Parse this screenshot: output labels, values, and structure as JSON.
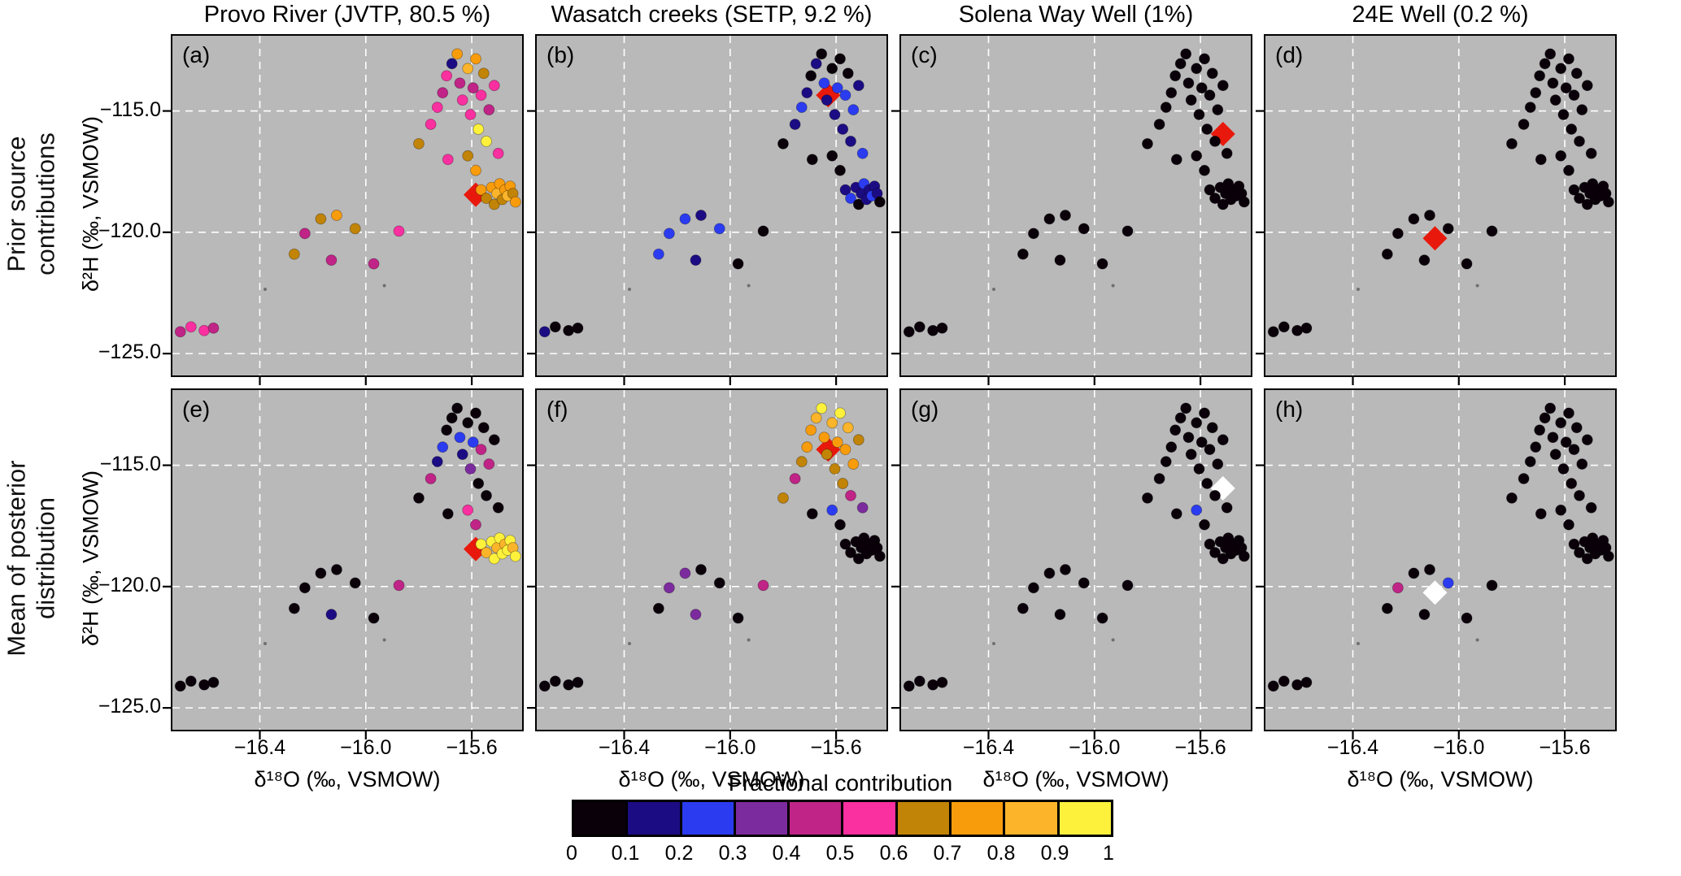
{
  "figure": {
    "panel_bg": "#b9b9b9",
    "grid_color": "#ffffff",
    "diamond_red": "#e8190c",
    "diamond_white": "#ffffff"
  },
  "chart_data": {
    "type": "scatter",
    "xlabel": "δ¹⁸O (‰, VSMOW)",
    "ylabel": "δ²H (‰, VSMOW)",
    "xlim": [
      -16.73,
      -15.41
    ],
    "ylim": [
      -125.9,
      -111.9
    ],
    "xticks": [
      -16.4,
      -16.0,
      -15.6
    ],
    "xtick_labels": [
      "−16.4",
      "−16.0",
      "−15.6"
    ],
    "yticks": [
      -115,
      -120,
      -125
    ],
    "ytick_labels": [
      "−115.0",
      "−120.0",
      "−125.0"
    ],
    "grid": "white-dashed",
    "legend_position": "bottom",
    "columns": [
      {
        "title": "Provo River (JVTP, 80.5 %)"
      },
      {
        "title": "Wasatch creeks (SETP, 9.2 %)"
      },
      {
        "title": "Solena Way Well (1%)"
      },
      {
        "title": "24E Well (0.2 %)"
      }
    ],
    "rows": [
      {
        "label": "Prior source\ncontributions"
      },
      {
        "label": "Mean of posterior\ndistribution"
      }
    ],
    "points_x": [
      -16.7,
      -16.66,
      -16.61,
      -16.575,
      -16.27,
      -16.23,
      -16.17,
      -16.11,
      -16.04,
      -16.13,
      -15.97,
      -15.875,
      -15.8,
      -15.755,
      -15.73,
      -15.71,
      -15.695,
      -15.675,
      -15.655,
      -15.645,
      -15.635,
      -15.615,
      -15.605,
      -15.595,
      -15.585,
      -15.575,
      -15.565,
      -15.555,
      -15.545,
      -15.535,
      -15.515,
      -15.5,
      -15.615,
      -15.585,
      -15.565,
      -15.545,
      -15.525,
      -15.515,
      -15.505,
      -15.495,
      -15.485,
      -15.475,
      -15.465,
      -15.455,
      -15.445,
      -15.435,
      -15.69
    ],
    "points_y": [
      -124.1,
      -123.9,
      -124.05,
      -123.95,
      -120.9,
      -120.05,
      -119.45,
      -119.3,
      -119.85,
      -121.15,
      -121.3,
      -119.95,
      -116.35,
      -115.55,
      -114.85,
      -114.25,
      -113.55,
      -113.05,
      -112.65,
      -113.85,
      -114.55,
      -113.25,
      -115.15,
      -114.05,
      -112.85,
      -115.75,
      -114.35,
      -113.45,
      -116.25,
      -114.95,
      -113.95,
      -116.75,
      -116.85,
      -117.45,
      -118.25,
      -118.6,
      -118.15,
      -118.85,
      -118.4,
      -118.0,
      -118.65,
      -118.25,
      -118.5,
      -118.1,
      -118.4,
      -118.75,
      -117.0
    ],
    "small_points": [
      [
        -16.38,
        -122.35
      ],
      [
        -15.93,
        -122.2
      ]
    ],
    "sources": [
      {
        "x": -15.585,
        "y": -118.45
      },
      {
        "x": -15.63,
        "y": -114.35
      },
      {
        "x": -15.515,
        "y": -115.95
      },
      {
        "x": -16.09,
        "y": -120.25
      }
    ],
    "panels": [
      {
        "id": "a",
        "row": 0,
        "col": 0,
        "diamond_color": "#e8190c",
        "values": [
          0.45,
          0.55,
          0.5,
          0.45,
          0.65,
          0.45,
          0.65,
          0.75,
          0.65,
          0.45,
          0.45,
          0.55,
          0.65,
          0.55,
          0.55,
          0.45,
          0.55,
          0.15,
          0.75,
          0.45,
          0.55,
          0.85,
          0.55,
          0.45,
          0.75,
          0.95,
          0.55,
          0.65,
          0.95,
          0.45,
          0.55,
          0.55,
          0.65,
          0.75,
          0.75,
          0.65,
          0.75,
          0.65,
          0.85,
          0.75,
          0.65,
          0.75,
          0.85,
          0.75,
          0.65,
          0.75,
          0.55
        ]
      },
      {
        "id": "b",
        "row": 0,
        "col": 1,
        "diamond_color": "#e8190c",
        "values": [
          0.15,
          0.05,
          0.05,
          0.05,
          0.25,
          0.25,
          0.25,
          0.15,
          0.25,
          0.15,
          0.05,
          0.05,
          0.05,
          0.15,
          0.25,
          0.15,
          0.05,
          0.15,
          0.05,
          0.25,
          0.15,
          0.05,
          0.15,
          0.25,
          0.05,
          0.15,
          0.25,
          0.05,
          0.15,
          0.25,
          0.15,
          0.25,
          0.05,
          0.05,
          0.15,
          0.25,
          0.15,
          0.05,
          0.15,
          0.25,
          0.15,
          0.15,
          0.25,
          0.15,
          0.15,
          0.05,
          0.05
        ]
      },
      {
        "id": "c",
        "row": 0,
        "col": 2,
        "diamond_color": "#e8190c",
        "values": [
          0.05,
          0.05,
          0.05,
          0.05,
          0.05,
          0.05,
          0.05,
          0.05,
          0.05,
          0.05,
          0.05,
          0.05,
          0.05,
          0.05,
          0.05,
          0.05,
          0.05,
          0.05,
          0.05,
          0.05,
          0.05,
          0.05,
          0.05,
          0.05,
          0.05,
          0.05,
          0.05,
          0.05,
          0.05,
          0.05,
          0.05,
          0.05,
          0.05,
          0.05,
          0.05,
          0.05,
          0.05,
          0.05,
          0.05,
          0.05,
          0.05,
          0.05,
          0.05,
          0.05,
          0.05,
          0.05,
          0.05
        ]
      },
      {
        "id": "d",
        "row": 0,
        "col": 3,
        "diamond_color": "#e8190c",
        "values": [
          0.05,
          0.05,
          0.05,
          0.05,
          0.05,
          0.05,
          0.05,
          0.05,
          0.05,
          0.05,
          0.05,
          0.05,
          0.05,
          0.05,
          0.05,
          0.05,
          0.05,
          0.05,
          0.05,
          0.05,
          0.05,
          0.05,
          0.05,
          0.05,
          0.05,
          0.05,
          0.05,
          0.05,
          0.05,
          0.05,
          0.05,
          0.05,
          0.05,
          0.05,
          0.05,
          0.05,
          0.05,
          0.05,
          0.05,
          0.05,
          0.05,
          0.05,
          0.05,
          0.05,
          0.05,
          0.05,
          0.05
        ]
      },
      {
        "id": "e",
        "row": 1,
        "col": 0,
        "diamond_color": "#e8190c",
        "values": [
          0.05,
          0.05,
          0.05,
          0.05,
          0.05,
          0.05,
          0.05,
          0.05,
          0.05,
          0.15,
          0.05,
          0.45,
          0.05,
          0.45,
          0.15,
          0.25,
          0.05,
          0.05,
          0.05,
          0.25,
          0.15,
          0.05,
          0.35,
          0.25,
          0.05,
          0.05,
          0.45,
          0.05,
          0.05,
          0.45,
          0.05,
          0.05,
          0.55,
          0.45,
          0.95,
          0.85,
          0.95,
          0.95,
          0.85,
          0.95,
          0.95,
          0.85,
          0.95,
          0.95,
          0.85,
          0.95,
          0.05
        ]
      },
      {
        "id": "f",
        "row": 1,
        "col": 1,
        "diamond_color": "#e8190c",
        "values": [
          0.05,
          0.05,
          0.05,
          0.05,
          0.05,
          0.35,
          0.35,
          0.05,
          0.05,
          0.35,
          0.05,
          0.45,
          0.65,
          0.45,
          0.65,
          0.75,
          0.75,
          0.85,
          0.95,
          0.75,
          0.65,
          0.85,
          0.65,
          0.75,
          0.95,
          0.65,
          0.75,
          0.85,
          0.45,
          0.75,
          0.65,
          0.35,
          0.25,
          0.05,
          0.05,
          0.05,
          0.05,
          0.05,
          0.05,
          0.05,
          0.05,
          0.05,
          0.05,
          0.05,
          0.05,
          0.05,
          0.05
        ]
      },
      {
        "id": "g",
        "row": 1,
        "col": 2,
        "diamond_color": "#ffffff",
        "values": [
          0.05,
          0.05,
          0.05,
          0.05,
          0.05,
          0.05,
          0.05,
          0.05,
          0.05,
          0.05,
          0.05,
          0.05,
          0.05,
          0.05,
          0.05,
          0.05,
          0.05,
          0.05,
          0.05,
          0.05,
          0.05,
          0.05,
          0.05,
          0.05,
          0.05,
          0.05,
          0.05,
          0.05,
          0.05,
          0.05,
          0.05,
          0.05,
          0.25,
          0.05,
          0.05,
          0.05,
          0.05,
          0.05,
          0.05,
          0.05,
          0.05,
          0.05,
          0.05,
          0.05,
          0.05,
          0.05,
          0.05
        ]
      },
      {
        "id": "h",
        "row": 1,
        "col": 3,
        "diamond_color": "#ffffff",
        "values": [
          0.05,
          0.05,
          0.05,
          0.05,
          0.05,
          0.45,
          0.05,
          0.05,
          0.25,
          0.05,
          0.05,
          0.05,
          0.05,
          0.05,
          0.05,
          0.05,
          0.05,
          0.05,
          0.05,
          0.05,
          0.05,
          0.05,
          0.05,
          0.05,
          0.05,
          0.05,
          0.05,
          0.05,
          0.05,
          0.05,
          0.05,
          0.05,
          0.05,
          0.05,
          0.05,
          0.05,
          0.05,
          0.05,
          0.05,
          0.05,
          0.05,
          0.05,
          0.05,
          0.05,
          0.05,
          0.05,
          0.05
        ]
      }
    ],
    "colorbar": {
      "title": "Fractional contribution",
      "colors": [
        "#0a0009",
        "#1c0c84",
        "#2b3cf0",
        "#7c2b9e",
        "#c02487",
        "#fa2fa0",
        "#c28406",
        "#f99c0c",
        "#fcb52a",
        "#fdf13c"
      ],
      "tick_labels": [
        "0",
        "0.1",
        "0.2",
        "0.3",
        "0.4",
        "0.5",
        "0.6",
        "0.7",
        "0.8",
        "0.9",
        "1"
      ]
    }
  }
}
